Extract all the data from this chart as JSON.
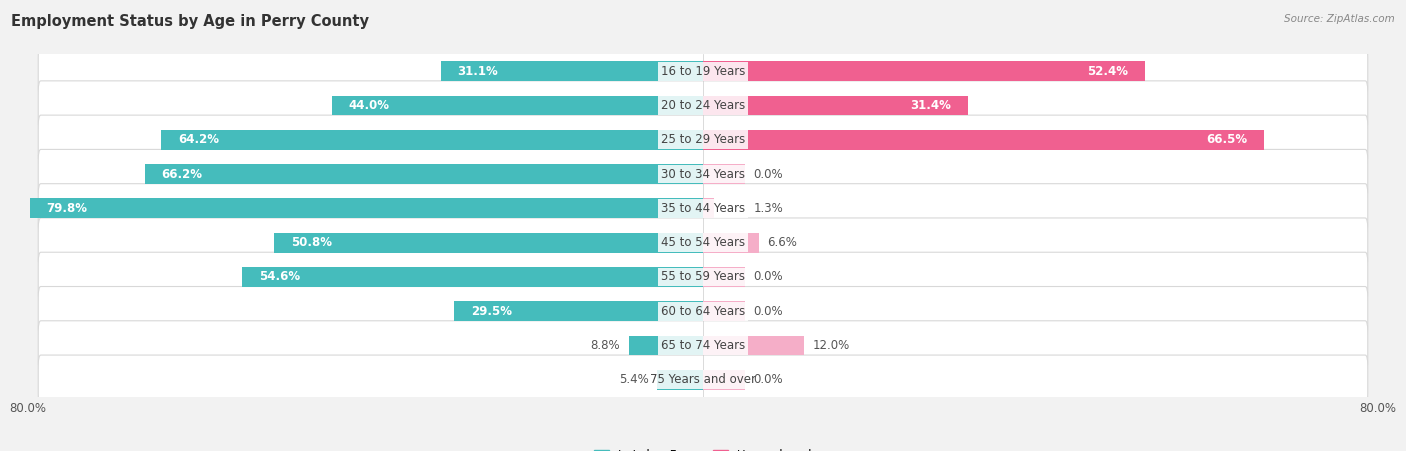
{
  "title": "Employment Status by Age in Perry County",
  "source": "Source: ZipAtlas.com",
  "categories": [
    "16 to 19 Years",
    "20 to 24 Years",
    "25 to 29 Years",
    "30 to 34 Years",
    "35 to 44 Years",
    "45 to 54 Years",
    "55 to 59 Years",
    "60 to 64 Years",
    "65 to 74 Years",
    "75 Years and over"
  ],
  "labor_force": [
    31.1,
    44.0,
    64.2,
    66.2,
    79.8,
    50.8,
    54.6,
    29.5,
    8.8,
    5.4
  ],
  "unemployed": [
    52.4,
    31.4,
    66.5,
    0.0,
    1.3,
    6.6,
    0.0,
    0.0,
    12.0,
    0.0
  ],
  "labor_force_color": "#45bcbc",
  "unemployed_color_strong": "#f06090",
  "unemployed_color_weak": "#f5aec8",
  "background_color": "#f2f2f2",
  "row_bg_color": "#ffffff",
  "row_border_color": "#d8d8d8",
  "axis_limit": 80.0,
  "title_fontsize": 10.5,
  "source_fontsize": 7.5,
  "label_fontsize": 8.5,
  "bar_height": 0.58,
  "stub_size": 5.0,
  "strong_threshold": 20.0
}
